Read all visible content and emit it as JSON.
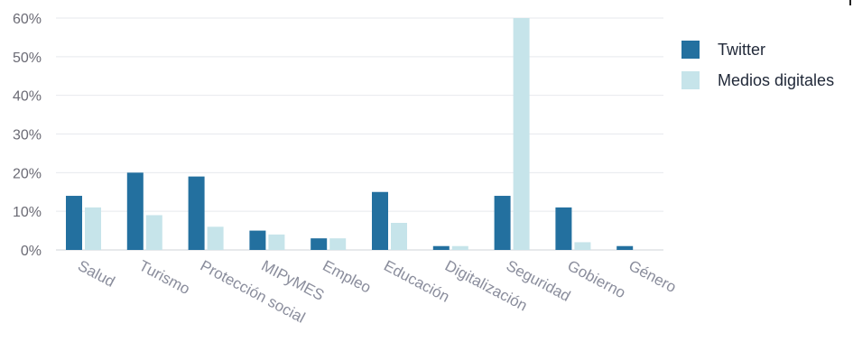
{
  "chart_data": {
    "type": "bar",
    "categories": [
      "Salud",
      "Turismo",
      "Protección social",
      "MIPyMES",
      "Empleo",
      "Educación",
      "Digitalización",
      "Seguridad",
      "Gobierno",
      "Género"
    ],
    "series": [
      {
        "name": "Twitter",
        "color": "#23709f",
        "values": [
          14,
          20,
          19,
          5,
          3,
          15,
          1,
          14,
          11,
          1
        ]
      },
      {
        "name": "Medios digitales",
        "color": "#c6e4ea",
        "values": [
          11,
          9,
          6,
          4,
          3,
          7,
          1,
          60,
          2,
          0
        ]
      }
    ],
    "yticks": [
      "0%",
      "10%",
      "20%",
      "30%",
      "40%",
      "50%",
      "60%"
    ],
    "ylim": [
      0,
      60
    ],
    "grid": true,
    "legend_position": "right"
  }
}
